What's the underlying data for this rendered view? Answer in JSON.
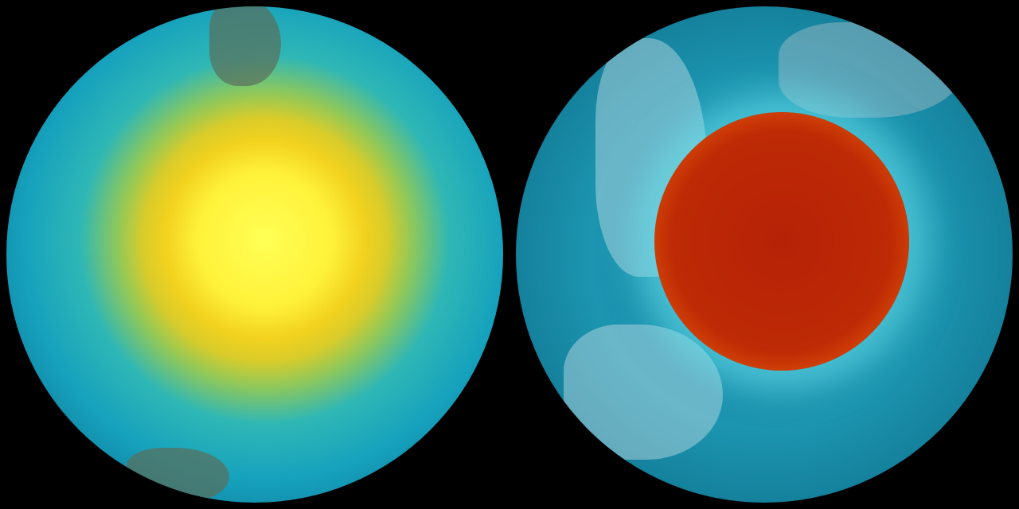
{
  "globes": [
    {
      "colors": {
        "center": "#fff23a",
        "outer": "#16a2bd"
      }
    },
    {
      "colors": {
        "center": "#bd2a05",
        "ring": "#f9e12c",
        "outer": "#1c95b0"
      }
    }
  ]
}
